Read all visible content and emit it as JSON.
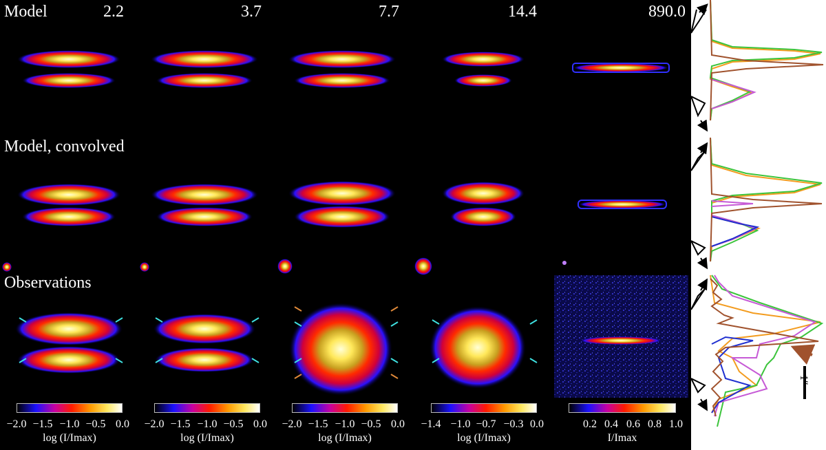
{
  "header": {
    "model_label": "Model",
    "wavelengths": [
      "2.2",
      "3.7",
      "7.7",
      "14.4",
      "890.0"
    ]
  },
  "rows": {
    "model_convolved": "Model, convolved",
    "observations": "Observations"
  },
  "colorbars": [
    {
      "ticks": [
        "−2.0",
        "−1.5",
        "−1.0",
        "−0.5",
        "0.0"
      ],
      "label": "log (I/Imax)"
    },
    {
      "ticks": [
        "−2.0",
        "−1.5",
        "−1.0",
        "−0.5",
        "0.0"
      ],
      "label": "log (I/Imax)"
    },
    {
      "ticks": [
        "−2.0",
        "−1.5",
        "−1.0",
        "−0.5",
        "0.0"
      ],
      "label": "log (I/Imax)"
    },
    {
      "ticks": [
        "−1.4",
        "−1.0",
        "−0.7",
        "−0.3",
        "0.0"
      ],
      "label": "log (I/Imax)"
    },
    {
      "ticks": [
        "0.2",
        "0.4",
        "0.6",
        "0.8",
        "1.0"
      ],
      "label": "I/Imax"
    }
  ],
  "scale_bar_label": "1″",
  "colors": {
    "profile_orange": "#f39c1f",
    "profile_green": "#3cc43c",
    "profile_magenta": "#c65ad6",
    "profile_blue": "#2030d0",
    "profile_brown": "#a0522d",
    "marker_cyan": "#3ee0e0",
    "marker_orange": "#e08a3a"
  }
}
